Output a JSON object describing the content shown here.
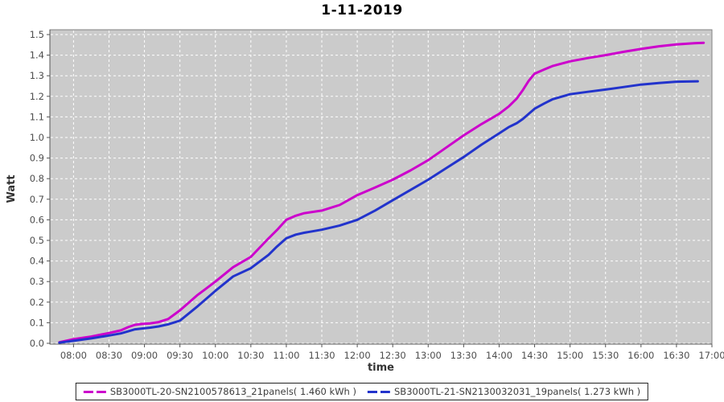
{
  "chart_data": {
    "type": "line",
    "title": "1-11-2019",
    "xlabel": "time",
    "ylabel": "Watt",
    "x_unit": "minutes_since_midnight",
    "xlim_minutes": [
      460,
      1020
    ],
    "ylim": [
      0,
      1.5
    ],
    "grid": "white dashed gridlines on gray plot background",
    "legend_position": "bottom-center",
    "colors": {
      "plot_bg": "#cbcbcb",
      "grid": "#ffffff",
      "border": "#808080",
      "axis_line": "#555555",
      "tick_mark": "#555555",
      "tick_text": "#4d4d4d",
      "axis_text": "#333333",
      "title_text": "#000000",
      "legend_border": "#222222",
      "legend_text": "#3c3c3c"
    },
    "x_ticks": [
      {
        "m": 480,
        "label": "08:00"
      },
      {
        "m": 510,
        "label": "08:30"
      },
      {
        "m": 540,
        "label": "09:00"
      },
      {
        "m": 570,
        "label": "09:30"
      },
      {
        "m": 600,
        "label": "10:00"
      },
      {
        "m": 630,
        "label": "10:30"
      },
      {
        "m": 660,
        "label": "11:00"
      },
      {
        "m": 690,
        "label": "11:30"
      },
      {
        "m": 720,
        "label": "12:00"
      },
      {
        "m": 750,
        "label": "12:30"
      },
      {
        "m": 780,
        "label": "13:00"
      },
      {
        "m": 810,
        "label": "13:30"
      },
      {
        "m": 840,
        "label": "14:00"
      },
      {
        "m": 870,
        "label": "14:30"
      },
      {
        "m": 900,
        "label": "15:00"
      },
      {
        "m": 930,
        "label": "15:30"
      },
      {
        "m": 960,
        "label": "16:00"
      },
      {
        "m": 990,
        "label": "16:30"
      },
      {
        "m": 1020,
        "label": "17:00"
      }
    ],
    "y_ticks": [
      {
        "v": 0.0,
        "label": "0.0"
      },
      {
        "v": 0.1,
        "label": "0.1"
      },
      {
        "v": 0.2,
        "label": "0.2"
      },
      {
        "v": 0.3,
        "label": "0.3"
      },
      {
        "v": 0.4,
        "label": "0.4"
      },
      {
        "v": 0.5,
        "label": "0.5"
      },
      {
        "v": 0.6,
        "label": "0.6"
      },
      {
        "v": 0.7,
        "label": "0.7"
      },
      {
        "v": 0.8,
        "label": "0.8"
      },
      {
        "v": 0.9,
        "label": "0.9"
      },
      {
        "v": 1.0,
        "label": "1.0"
      },
      {
        "v": 1.1,
        "label": "1.1"
      },
      {
        "v": 1.2,
        "label": "1.2"
      },
      {
        "v": 1.3,
        "label": "1.3"
      },
      {
        "v": 1.4,
        "label": "1.4"
      },
      {
        "v": 1.5,
        "label": "1.5"
      }
    ],
    "series": [
      {
        "name": "SB3000TL-20-SN2100578613_21panels",
        "label": "SB3000TL-20-SN2100578613_21panels( 1.460 kWh )",
        "total_kwh": "1.460",
        "color": "#cc00cc",
        "points": [
          [
            468,
            0.005
          ],
          [
            480,
            0.02
          ],
          [
            495,
            0.033
          ],
          [
            510,
            0.05
          ],
          [
            520,
            0.063
          ],
          [
            526,
            0.078
          ],
          [
            532,
            0.09
          ],
          [
            538,
            0.094
          ],
          [
            545,
            0.097
          ],
          [
            552,
            0.103
          ],
          [
            560,
            0.118
          ],
          [
            570,
            0.16
          ],
          [
            585,
            0.235
          ],
          [
            600,
            0.3
          ],
          [
            615,
            0.37
          ],
          [
            630,
            0.42
          ],
          [
            645,
            0.51
          ],
          [
            652,
            0.55
          ],
          [
            660,
            0.6
          ],
          [
            668,
            0.62
          ],
          [
            675,
            0.632
          ],
          [
            690,
            0.645
          ],
          [
            705,
            0.672
          ],
          [
            720,
            0.72
          ],
          [
            735,
            0.757
          ],
          [
            750,
            0.795
          ],
          [
            765,
            0.84
          ],
          [
            780,
            0.89
          ],
          [
            795,
            0.95
          ],
          [
            810,
            1.01
          ],
          [
            825,
            1.065
          ],
          [
            840,
            1.115
          ],
          [
            848,
            1.15
          ],
          [
            855,
            1.19
          ],
          [
            860,
            1.23
          ],
          [
            865,
            1.275
          ],
          [
            870,
            1.31
          ],
          [
            878,
            1.33
          ],
          [
            885,
            1.347
          ],
          [
            900,
            1.37
          ],
          [
            915,
            1.386
          ],
          [
            930,
            1.4
          ],
          [
            945,
            1.416
          ],
          [
            960,
            1.43
          ],
          [
            975,
            1.443
          ],
          [
            990,
            1.452
          ],
          [
            1005,
            1.458
          ],
          [
            1013,
            1.46
          ]
        ]
      },
      {
        "name": "SB3000TL-21-SN2130032031_19panels",
        "label": "SB3000TL-21-SN2130032031_19panels( 1.273 kWh )",
        "total_kwh": "1.273",
        "color": "#2233cc",
        "points": [
          [
            468,
            0.003
          ],
          [
            480,
            0.012
          ],
          [
            495,
            0.024
          ],
          [
            510,
            0.038
          ],
          [
            520,
            0.048
          ],
          [
            526,
            0.058
          ],
          [
            532,
            0.068
          ],
          [
            538,
            0.072
          ],
          [
            545,
            0.076
          ],
          [
            552,
            0.082
          ],
          [
            560,
            0.092
          ],
          [
            570,
            0.11
          ],
          [
            585,
            0.18
          ],
          [
            600,
            0.255
          ],
          [
            615,
            0.325
          ],
          [
            630,
            0.365
          ],
          [
            645,
            0.43
          ],
          [
            652,
            0.47
          ],
          [
            660,
            0.51
          ],
          [
            668,
            0.528
          ],
          [
            675,
            0.537
          ],
          [
            690,
            0.552
          ],
          [
            705,
            0.572
          ],
          [
            720,
            0.6
          ],
          [
            735,
            0.645
          ],
          [
            750,
            0.695
          ],
          [
            765,
            0.745
          ],
          [
            780,
            0.795
          ],
          [
            795,
            0.85
          ],
          [
            810,
            0.905
          ],
          [
            825,
            0.965
          ],
          [
            840,
            1.02
          ],
          [
            848,
            1.05
          ],
          [
            855,
            1.07
          ],
          [
            860,
            1.09
          ],
          [
            865,
            1.115
          ],
          [
            870,
            1.14
          ],
          [
            878,
            1.165
          ],
          [
            885,
            1.185
          ],
          [
            900,
            1.21
          ],
          [
            915,
            1.222
          ],
          [
            930,
            1.233
          ],
          [
            945,
            1.245
          ],
          [
            960,
            1.257
          ],
          [
            975,
            1.265
          ],
          [
            990,
            1.271
          ],
          [
            1008,
            1.273
          ]
        ]
      }
    ]
  }
}
